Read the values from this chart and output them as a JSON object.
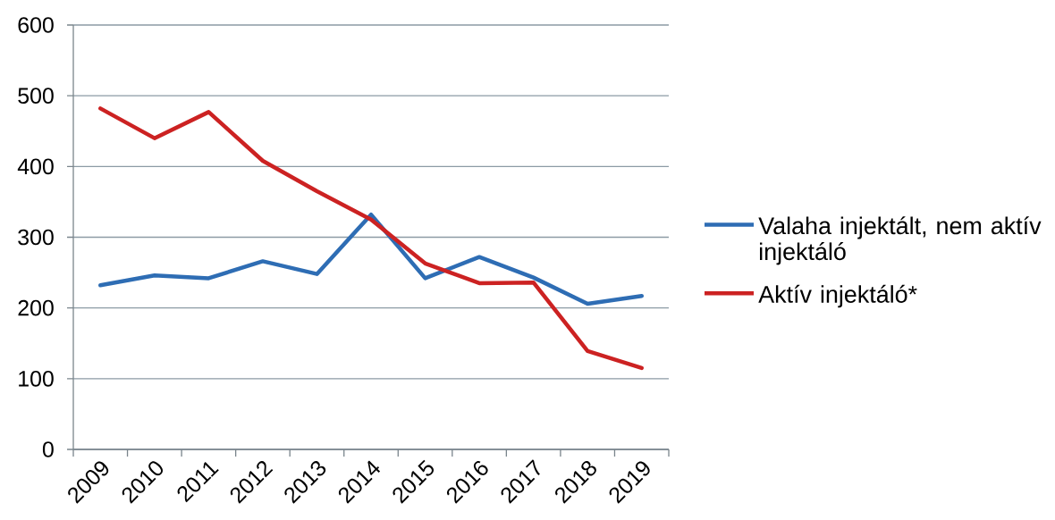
{
  "chart_data": {
    "type": "line",
    "categories": [
      "2009",
      "2010",
      "2011",
      "2012",
      "2013",
      "2014",
      "2015",
      "2016",
      "2017",
      "2018",
      "2019"
    ],
    "series": [
      {
        "name": "Valaha injektált, nem aktív injektáló",
        "color": "#2e6db4",
        "values": [
          232,
          246,
          242,
          266,
          248,
          332,
          242,
          272,
          243,
          206,
          217
        ]
      },
      {
        "name": "Aktív injektáló*",
        "color": "#cc2222",
        "values": [
          482,
          440,
          477,
          408,
          365,
          325,
          263,
          235,
          236,
          139,
          115
        ]
      }
    ],
    "ylim": [
      0,
      600
    ],
    "yticks": [
      0,
      100,
      200,
      300,
      400,
      500,
      600
    ],
    "grid": "y",
    "legend": "right",
    "marker": "none",
    "line_style": "solid"
  }
}
